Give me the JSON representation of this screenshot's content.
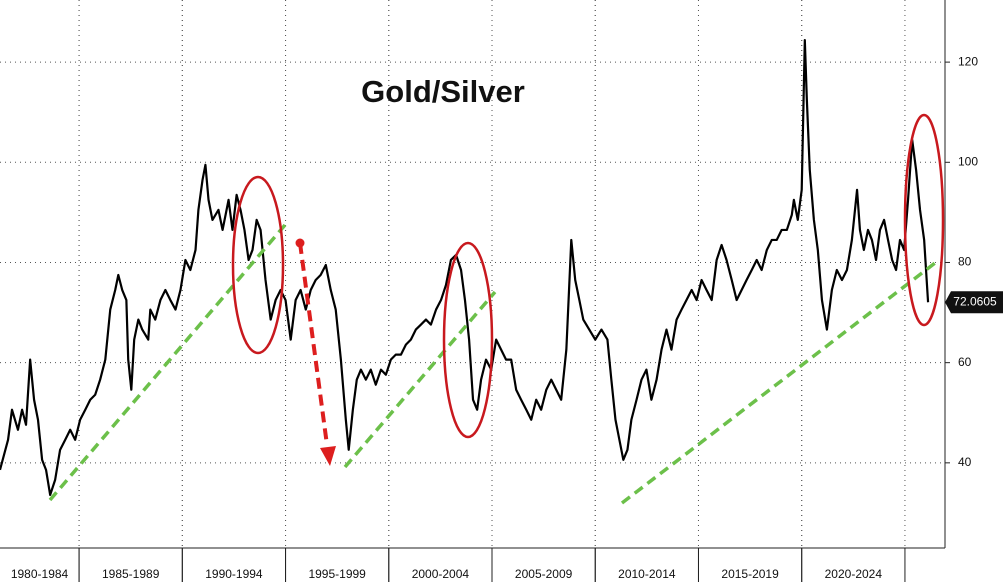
{
  "chart_data": {
    "type": "line",
    "title": "Gold/Silver",
    "color": "#000000",
    "xlim": [
      1981.17,
      2026.94
    ],
    "ylim": [
      23,
      132.4
    ],
    "yticks": [
      40,
      60,
      80,
      100,
      120
    ],
    "grid": true,
    "x_bands": [
      {
        "start": 1980,
        "end": 1985,
        "label": "1980-1984"
      },
      {
        "start": 1985,
        "end": 1990,
        "label": "1985-1989"
      },
      {
        "start": 1990,
        "end": 1995,
        "label": "1990-1994"
      },
      {
        "start": 1995,
        "end": 2000,
        "label": "1995-1999"
      },
      {
        "start": 2000,
        "end": 2005,
        "label": "2000-2004"
      },
      {
        "start": 2005,
        "end": 2010,
        "label": "2005-2009"
      },
      {
        "start": 2010,
        "end": 2015,
        "label": "2010-2014"
      },
      {
        "start": 2015,
        "end": 2020,
        "label": "2015-2019"
      },
      {
        "start": 2020,
        "end": 2025,
        "label": "2020-2024"
      }
    ],
    "x": [
      1981.17,
      1981.56,
      1981.75,
      1982.04,
      1982.24,
      1982.43,
      1982.63,
      1982.82,
      1983.01,
      1983.21,
      1983.4,
      1983.6,
      1983.84,
      1984.08,
      1984.33,
      1984.57,
      1984.81,
      1985.05,
      1985.3,
      1985.54,
      1985.78,
      1986.02,
      1986.27,
      1986.51,
      1986.75,
      1986.9,
      1987.09,
      1987.29,
      1987.38,
      1987.53,
      1987.67,
      1987.87,
      1988.06,
      1988.35,
      1988.45,
      1988.69,
      1988.94,
      1989.18,
      1989.42,
      1989.67,
      1989.91,
      1990.15,
      1990.39,
      1990.64,
      1990.78,
      1990.98,
      1991.12,
      1991.27,
      1991.46,
      1991.75,
      1991.95,
      1992.24,
      1992.43,
      1992.63,
      1992.82,
      1993.01,
      1993.21,
      1993.4,
      1993.6,
      1993.79,
      1994.03,
      1994.28,
      1994.52,
      1994.76,
      1995.0,
      1995.25,
      1995.49,
      1995.73,
      1995.98,
      1996.22,
      1996.46,
      1996.7,
      1996.95,
      1997.19,
      1997.43,
      1997.68,
      1997.92,
      1998.06,
      1998.26,
      1998.45,
      1998.65,
      1998.89,
      1999.13,
      1999.37,
      1999.62,
      1999.86,
      2000.1,
      2000.34,
      2000.59,
      2000.83,
      2001.07,
      2001.31,
      2001.56,
      2001.8,
      2002.04,
      2002.29,
      2002.53,
      2002.77,
      2003.01,
      2003.26,
      2003.5,
      2003.69,
      2003.89,
      2004.08,
      2004.28,
      2004.47,
      2004.71,
      2004.96,
      2005.2,
      2005.44,
      2005.68,
      2005.93,
      2006.17,
      2006.41,
      2006.66,
      2006.9,
      2007.14,
      2007.38,
      2007.63,
      2007.87,
      2008.11,
      2008.35,
      2008.6,
      2008.84,
      2009.03,
      2009.23,
      2009.42,
      2009.71,
      2010.0,
      2010.3,
      2010.59,
      2010.78,
      2010.98,
      2011.17,
      2011.36,
      2011.56,
      2011.75,
      2012.0,
      2012.24,
      2012.48,
      2012.72,
      2012.97,
      2013.21,
      2013.45,
      2013.69,
      2013.94,
      2014.18,
      2014.42,
      2014.67,
      2014.91,
      2015.15,
      2015.39,
      2015.64,
      2015.88,
      2016.12,
      2016.36,
      2016.61,
      2016.85,
      2017.09,
      2017.33,
      2017.58,
      2017.82,
      2018.06,
      2018.31,
      2018.55,
      2018.79,
      2019.03,
      2019.28,
      2019.52,
      2019.62,
      2019.81,
      2020.0,
      2020.15,
      2020.25,
      2020.39,
      2020.59,
      2020.78,
      2020.98,
      2021.22,
      2021.46,
      2021.7,
      2021.95,
      2022.19,
      2022.43,
      2022.68,
      2022.82,
      2023.01,
      2023.21,
      2023.4,
      2023.6,
      2023.79,
      2023.99,
      2024.18,
      2024.38,
      2024.57,
      2024.76,
      2024.96,
      2025.15,
      2025.35,
      2025.54,
      2025.73,
      2025.93,
      2026.12
    ],
    "values": [
      38.6,
      44.6,
      50.6,
      46.6,
      50.6,
      47.6,
      60.6,
      52.6,
      48.6,
      40.6,
      38.6,
      33.6,
      36.6,
      42.6,
      44.6,
      46.6,
      44.6,
      48.6,
      50.6,
      52.6,
      53.6,
      56.6,
      60.6,
      70.6,
      74.5,
      77.5,
      74.5,
      72.5,
      60.6,
      54.6,
      64.6,
      68.6,
      66.6,
      64.6,
      70.6,
      68.6,
      72.5,
      74.5,
      72.5,
      70.6,
      74.5,
      80.5,
      78.5,
      82.5,
      90.5,
      96.5,
      99.5,
      92.5,
      88.5,
      90.5,
      86.5,
      92.5,
      86.5,
      93.5,
      90.5,
      86.5,
      80.5,
      82.5,
      88.5,
      86.5,
      76.5,
      68.6,
      72.5,
      74.5,
      72.5,
      64.6,
      72.5,
      74.5,
      70.6,
      74.5,
      76.5,
      77.5,
      79.5,
      74.5,
      70.6,
      60.6,
      48.6,
      42.6,
      50.6,
      56.6,
      58.6,
      56.6,
      58.6,
      55.6,
      58.6,
      57.6,
      60.6,
      61.6,
      61.6,
      63.6,
      64.6,
      66.6,
      67.6,
      68.6,
      67.6,
      70.6,
      72.5,
      75.5,
      80.5,
      81.5,
      78.5,
      72.5,
      64.6,
      52.6,
      50.6,
      56.6,
      60.6,
      58.6,
      64.6,
      62.6,
      60.6,
      60.6,
      54.6,
      52.6,
      50.6,
      48.6,
      52.6,
      50.6,
      54.6,
      56.6,
      54.6,
      52.6,
      62.6,
      84.5,
      76.5,
      72.5,
      68.6,
      66.6,
      64.6,
      66.6,
      64.6,
      56.6,
      48.6,
      44.6,
      40.6,
      42.6,
      48.6,
      52.6,
      56.6,
      58.6,
      52.6,
      56.6,
      62.6,
      66.6,
      62.6,
      68.6,
      70.6,
      72.5,
      74.5,
      72.5,
      76.5,
      74.5,
      72.5,
      80.5,
      83.5,
      80.5,
      76.5,
      72.5,
      74.5,
      76.5,
      78.5,
      80.5,
      78.5,
      82.5,
      84.5,
      84.5,
      86.5,
      86.5,
      89.5,
      92.5,
      88.5,
      94.5,
      124.4,
      112.4,
      98.5,
      88.5,
      82.5,
      72.5,
      66.6,
      74.5,
      78.5,
      76.5,
      78.5,
      84.5,
      94.5,
      86.5,
      82.5,
      86.5,
      84.5,
      80.5,
      86.5,
      88.5,
      84.5,
      80.5,
      78.5,
      84.5,
      82.5,
      92.5,
      104.5,
      98.5,
      90.5,
      84.5,
      72.0605
    ]
  }
}
